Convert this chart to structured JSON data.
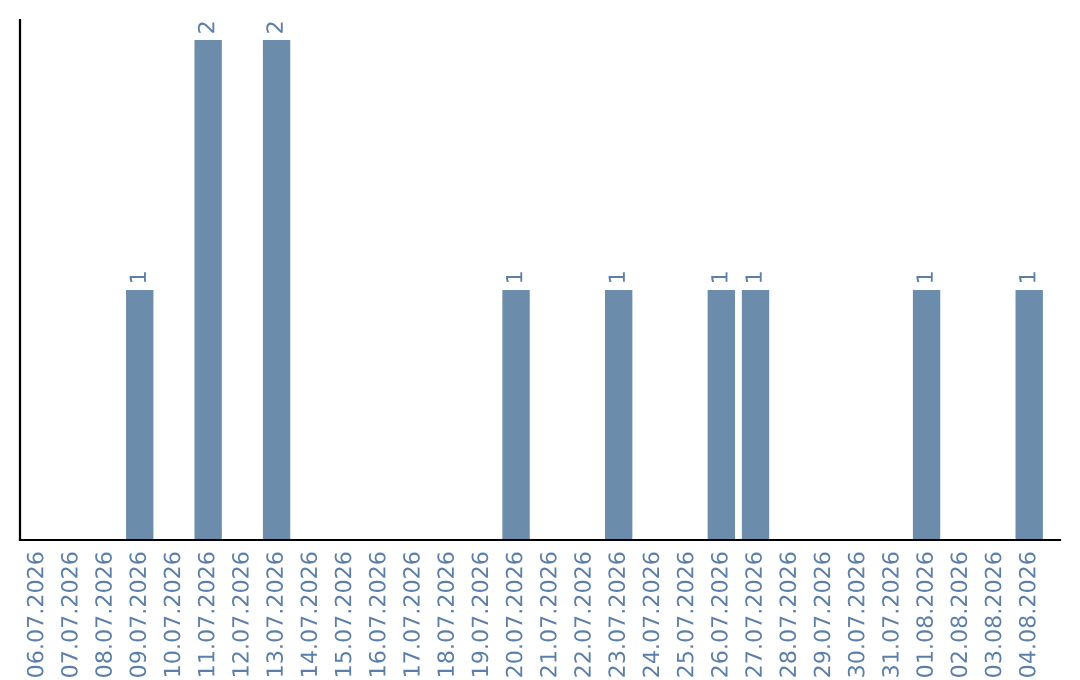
{
  "chart_data": {
    "type": "bar",
    "categories": [
      "06.07.2026",
      "07.07.2026",
      "08.07.2026",
      "09.07.2026",
      "10.07.2026",
      "11.07.2026",
      "12.07.2026",
      "13.07.2026",
      "14.07.2026",
      "15.07.2026",
      "16.07.2026",
      "17.07.2026",
      "18.07.2026",
      "19.07.2026",
      "20.07.2026",
      "21.07.2026",
      "22.07.2026",
      "23.07.2026",
      "24.07.2026",
      "25.07.2026",
      "26.07.2026",
      "27.07.2026",
      "28.07.2026",
      "29.07.2026",
      "30.07.2026",
      "31.07.2026",
      "01.08.2026",
      "02.08.2026",
      "03.08.2026",
      "04.08.2026"
    ],
    "values": [
      0,
      0,
      0,
      1,
      0,
      2,
      0,
      2,
      0,
      0,
      0,
      0,
      0,
      0,
      1,
      0,
      0,
      1,
      0,
      0,
      1,
      1,
      0,
      0,
      0,
      0,
      1,
      0,
      0,
      1
    ],
    "value_labels": [
      null,
      null,
      null,
      "1",
      null,
      "2",
      null,
      "2",
      null,
      null,
      null,
      null,
      null,
      null,
      "1",
      null,
      null,
      "1",
      null,
      null,
      "1",
      "1",
      null,
      null,
      null,
      null,
      "1",
      null,
      null,
      "1"
    ],
    "color": "#6b8caa",
    "tick_labels": "x",
    "grid": false,
    "legend": false
  }
}
